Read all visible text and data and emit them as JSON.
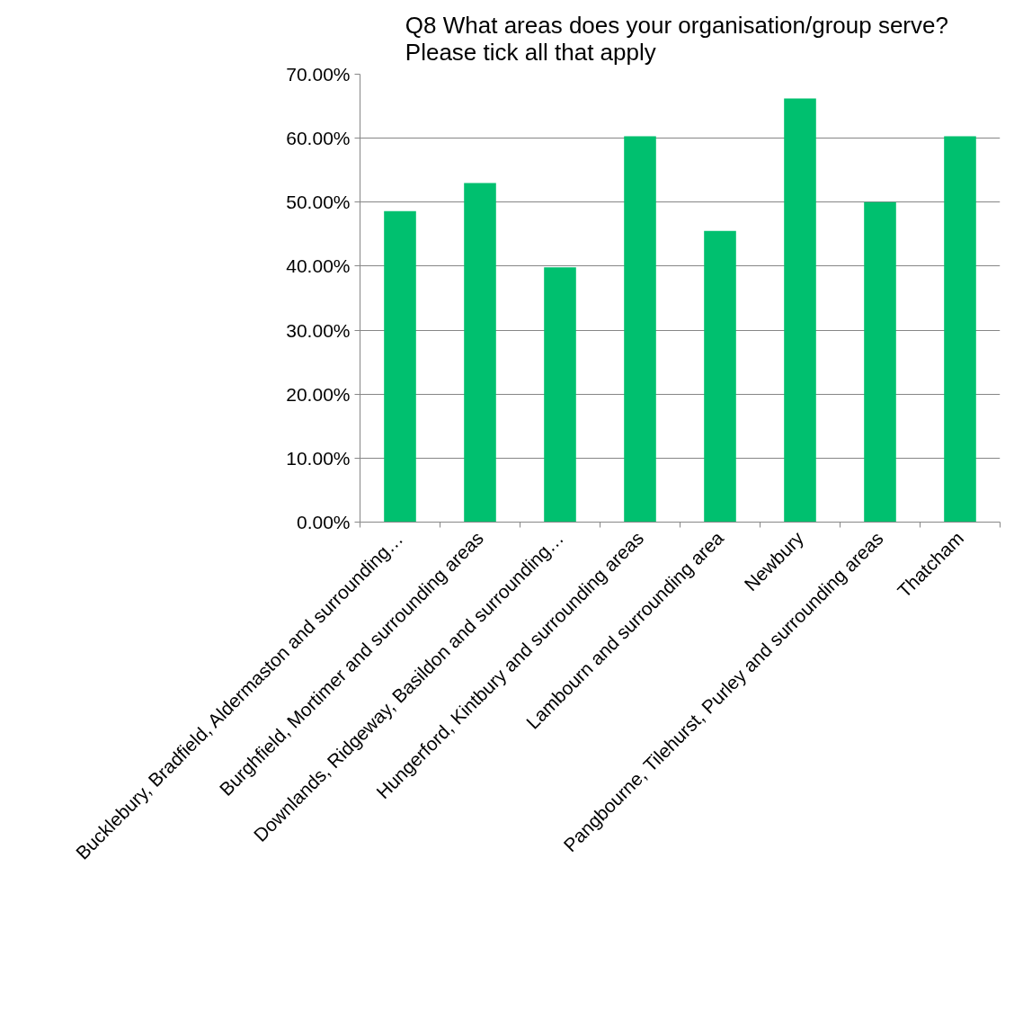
{
  "chart_data": {
    "type": "bar",
    "title": "Q8  What areas does your organisation/group serve?\nPlease tick all that apply",
    "categories": [
      "Bucklebury, Bradfield, Aldermaston and surrounding…",
      "Burghfield, Mortimer and surrounding areas",
      "Downlands, Ridgeway, Basildon and surrounding…",
      "Hungerford, Kintbury and surrounding areas",
      "Lambourn and surrounding area",
      "Newbury",
      "Pangbourne, Tilehurst, Purley and surrounding areas",
      "Thatcham"
    ],
    "values": [
      48.6,
      53.0,
      39.8,
      60.3,
      45.5,
      66.2,
      50.0,
      60.3
    ],
    "color": "#00c06f",
    "ylim": [
      0,
      70
    ],
    "yticks": [
      {
        "value": 0,
        "label": "0.00%"
      },
      {
        "value": 10,
        "label": "10.00%"
      },
      {
        "value": 20,
        "label": "20.00%"
      },
      {
        "value": 30,
        "label": "30.00%"
      },
      {
        "value": 40,
        "label": "40.00%"
      },
      {
        "value": 50,
        "label": "50.00%"
      },
      {
        "value": 60,
        "label": "60.00%"
      },
      {
        "value": 70,
        "label": "70.00%"
      }
    ],
    "grid": "y"
  }
}
